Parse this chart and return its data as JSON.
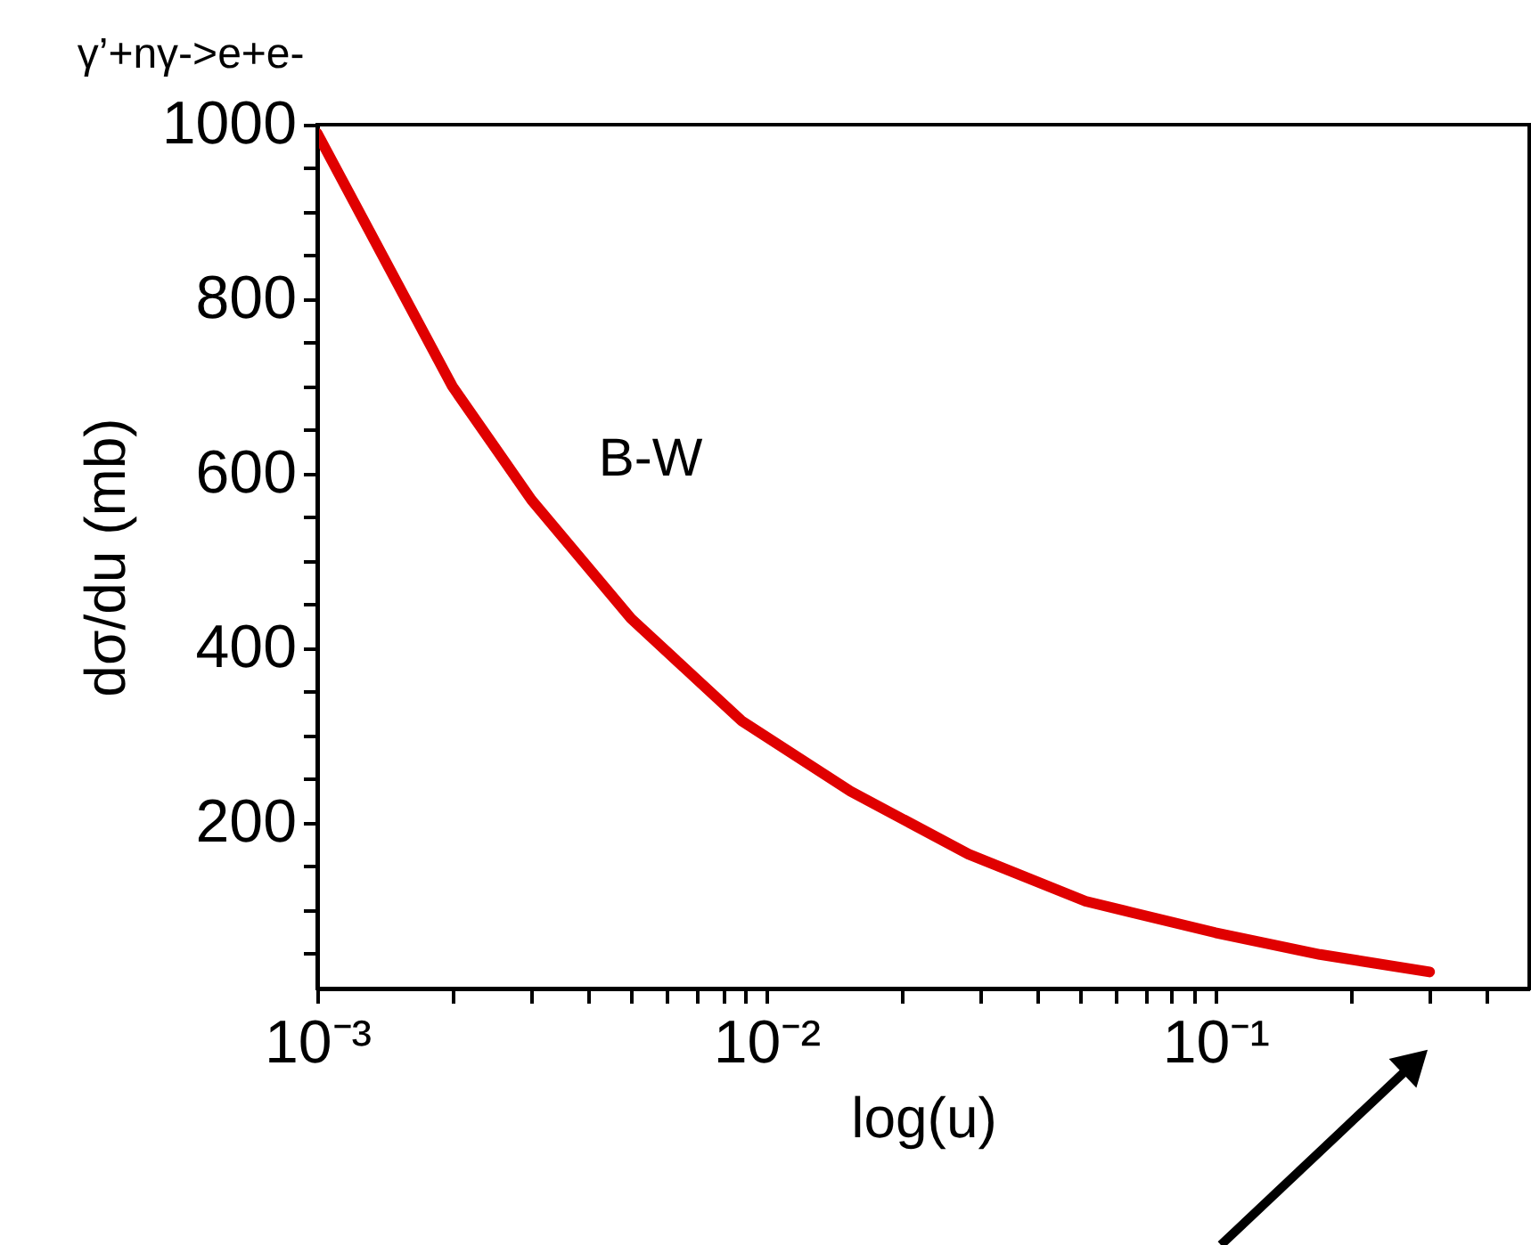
{
  "chart_data": {
    "type": "line",
    "title": "γ’+nγ->e+e-",
    "xlabel": "log(u)",
    "ylabel": "dσ/du (mb)",
    "log": "x",
    "grid": false,
    "line_style": "solid",
    "color": "#e00000",
    "x": [
      0.001,
      0.002,
      0.003,
      0.005,
      0.0088,
      0.0154,
      0.0282,
      0.0514,
      0.1,
      0.171,
      0.3
    ],
    "values": [
      990,
      700,
      570,
      434,
      317,
      236,
      164,
      110,
      74,
      49,
      29
    ],
    "xlim": [
      0.001,
      0.5
    ],
    "ylim": [
      10,
      1000
    ],
    "xticks": [
      {
        "value": 0.001,
        "label": "10⁻³"
      },
      {
        "value": 0.002,
        "label": null
      },
      {
        "value": 0.003,
        "label": null
      },
      {
        "value": 0.004,
        "label": null
      },
      {
        "value": 0.005,
        "label": null
      },
      {
        "value": 0.006,
        "label": null
      },
      {
        "value": 0.007,
        "label": null
      },
      {
        "value": 0.008,
        "label": null
      },
      {
        "value": 0.009,
        "label": null
      },
      {
        "value": 0.01,
        "label": "10⁻²"
      },
      {
        "value": 0.02,
        "label": null
      },
      {
        "value": 0.03,
        "label": null
      },
      {
        "value": 0.04,
        "label": null
      },
      {
        "value": 0.05,
        "label": null
      },
      {
        "value": 0.06,
        "label": null
      },
      {
        "value": 0.07,
        "label": null
      },
      {
        "value": 0.08,
        "label": null
      },
      {
        "value": 0.09,
        "label": null
      },
      {
        "value": 0.1,
        "label": "10⁻¹"
      },
      {
        "value": 0.2,
        "label": null
      },
      {
        "value": 0.3,
        "label": null
      },
      {
        "value": 0.4,
        "label": null
      }
    ],
    "yticks": [
      {
        "value": 50,
        "label": null
      },
      {
        "value": 100,
        "label": null
      },
      {
        "value": 150,
        "label": null
      },
      200,
      {
        "value": 250,
        "label": null
      },
      {
        "value": 300,
        "label": null
      },
      {
        "value": 350,
        "label": null
      },
      400,
      {
        "value": 450,
        "label": null
      },
      {
        "value": 500,
        "label": null
      },
      {
        "value": 550,
        "label": null
      },
      600,
      {
        "value": 650,
        "label": null
      },
      {
        "value": 700,
        "label": null
      },
      {
        "value": 750,
        "label": null
      },
      800,
      {
        "value": 850,
        "label": null
      },
      {
        "value": 900,
        "label": null
      },
      {
        "value": 950,
        "label": null
      },
      1000
    ],
    "annotations": [
      "B-W"
    ]
  }
}
